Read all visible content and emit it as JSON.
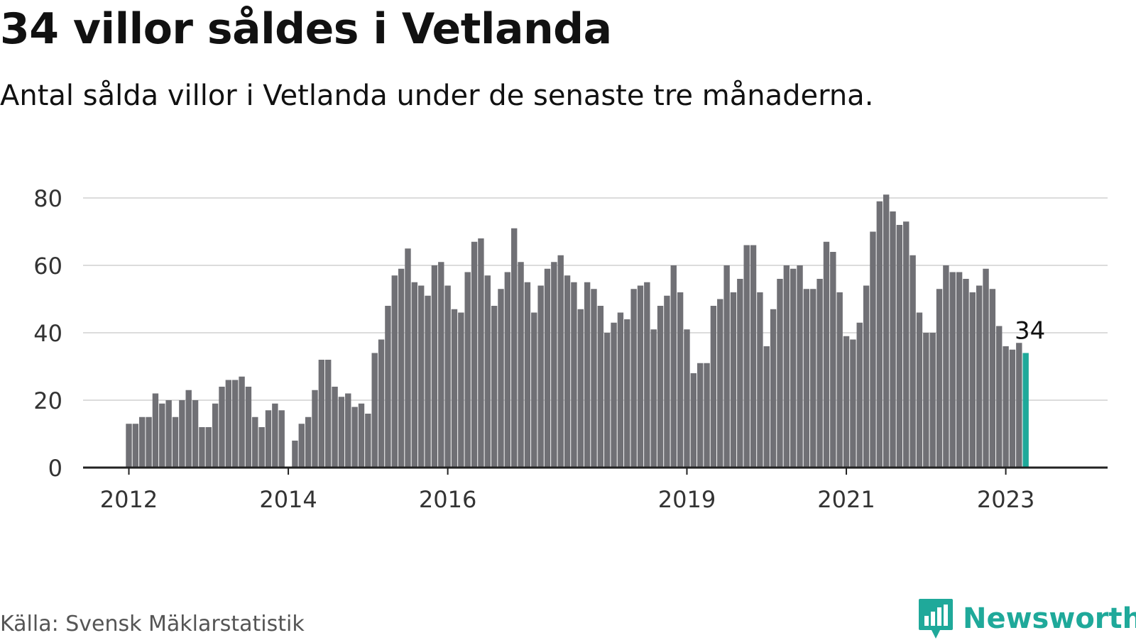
{
  "header": {
    "title": "34 villor såldes i Vetlanda",
    "subtitle": "Antal sålda villor i Vetlanda under de senaste tre månaderna."
  },
  "footer": {
    "source": "Källa: Svensk Mäklarstatistik",
    "brand": "Newsworthy",
    "brand_icon": "bar-chart-speech-icon"
  },
  "colors": {
    "bar": "#707075",
    "highlight": "#1fa99a",
    "grid": "#dcdcdc",
    "axis": "#222222",
    "text": "#333333"
  },
  "chart_data": {
    "type": "bar",
    "xlabel": "",
    "ylabel": "",
    "ylim": [
      0,
      80
    ],
    "yticks": [
      0,
      20,
      40,
      60,
      80
    ],
    "grid": true,
    "x_axis_start": "2011-06",
    "x_axis_end": "2023-11",
    "xticks": [
      {
        "label": "2012",
        "month": "2012-01"
      },
      {
        "label": "2014",
        "month": "2014-01"
      },
      {
        "label": "2016",
        "month": "2016-01"
      },
      {
        "label": "2019",
        "month": "2019-01"
      },
      {
        "label": "2021",
        "month": "2021-01"
      },
      {
        "label": "2023",
        "month": "2023-01"
      }
    ],
    "first_month": "2012-01",
    "values": [
      13,
      13,
      15,
      15,
      22,
      19,
      20,
      15,
      20,
      23,
      20,
      12,
      12,
      19,
      24,
      26,
      26,
      27,
      24,
      15,
      12,
      17,
      19,
      17,
      0,
      8,
      13,
      15,
      23,
      32,
      32,
      24,
      21,
      22,
      18,
      19,
      16,
      34,
      38,
      48,
      57,
      59,
      65,
      55,
      54,
      51,
      60,
      61,
      54,
      47,
      46,
      58,
      67,
      68,
      57,
      48,
      53,
      58,
      71,
      61,
      55,
      46,
      54,
      59,
      61,
      63,
      57,
      55,
      47,
      55,
      53,
      48,
      40,
      43,
      46,
      44,
      53,
      54,
      55,
      41,
      48,
      51,
      60,
      52,
      41,
      28,
      31,
      31,
      48,
      50,
      60,
      52,
      56,
      66,
      66,
      52,
      36,
      47,
      56,
      60,
      59,
      60,
      53,
      53,
      56,
      67,
      64,
      52,
      39,
      38,
      43,
      54,
      70,
      79,
      81,
      76,
      72,
      73,
      63,
      46,
      40,
      40,
      53,
      60,
      58,
      58,
      56,
      52,
      54,
      59,
      53,
      42,
      36,
      35,
      37,
      34
    ],
    "highlight_index": 135,
    "highlight_label": "34"
  }
}
